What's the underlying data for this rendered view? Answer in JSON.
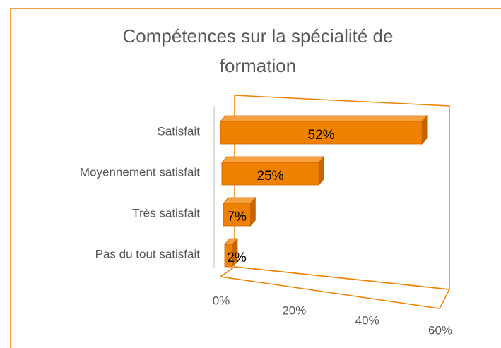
{
  "chart_data": {
    "type": "bar3d",
    "title": [
      "Compétences sur la spécialité de",
      "formation"
    ],
    "categories": [
      "Satisfait",
      "Moyennement satisfait",
      "Très satisfait",
      "Pas du tout satisfait"
    ],
    "values": [
      52,
      25,
      7,
      2
    ],
    "value_labels": [
      "52%",
      "25%",
      "7%",
      "2%"
    ],
    "color": "#f08000",
    "xlim": [
      0,
      60
    ],
    "xticks": [
      {
        "value": 0,
        "label": "0%"
      },
      {
        "value": 20,
        "label": "20%"
      },
      {
        "value": 40,
        "label": "40%"
      },
      {
        "value": 60,
        "label": "60%"
      }
    ]
  }
}
